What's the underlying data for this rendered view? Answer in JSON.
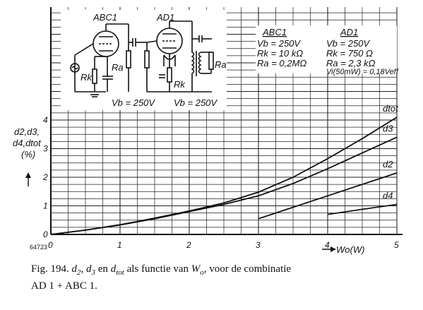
{
  "caption": {
    "prefix": "Fig. 194.",
    "t_d": "d",
    "t_2": "2",
    "t_comma": ",",
    "t_d3": "d",
    "t_3": "3",
    "t_en": "en",
    "t_dtot": "d",
    "t_tot": "tot",
    "t_als": "als functie van",
    "t_W": "W",
    "t_o": "o",
    "t_rest": ", voor de combinatie",
    "line2": "AD 1 + ABC 1."
  },
  "figure_number": "64723",
  "schematic": {
    "tube1": "ABC1",
    "tube2": "AD1",
    "rk1": "Rk",
    "ra1": "Ra",
    "rk2": "Rk",
    "ra2": "Ra",
    "vb1": "Vb = 250V",
    "vb2": "Vb = 250V"
  },
  "specs": {
    "abc1": {
      "title": "ABC1",
      "lines": [
        "Vb = 250V",
        "Rk = 10 kΩ",
        "Ra = 0,2MΩ"
      ]
    },
    "ad1": {
      "title": "AD1",
      "lines": [
        "Vb = 250V",
        "Rk = 750 Ω",
        "Ra = 2,3 kΩ",
        "Vi(50mW) = 0,18Veff"
      ]
    }
  },
  "chart_data": {
    "type": "line",
    "title": "",
    "xlabel": "Wo(W)",
    "ylabel": "d2,d3, d4,dtot (%)",
    "xlim": [
      0,
      5
    ],
    "ylim": [
      0,
      5
    ],
    "xticks": [
      0,
      1,
      2,
      3,
      4,
      5
    ],
    "yticks": [
      0,
      1,
      2,
      3,
      4
    ],
    "grid": true,
    "series": [
      {
        "name": "dtot",
        "x": [
          0,
          0.5,
          1,
          1.5,
          2,
          2.5,
          3,
          3.5,
          4,
          4.5,
          5
        ],
        "y": [
          0,
          0.15,
          0.34,
          0.57,
          0.82,
          1.1,
          1.48,
          2.0,
          2.65,
          3.35,
          4.1
        ]
      },
      {
        "name": "d3",
        "x": [
          0,
          0.5,
          1,
          1.5,
          2,
          2.5,
          3,
          3.5,
          4,
          4.5,
          5
        ],
        "y": [
          0,
          0.15,
          0.33,
          0.55,
          0.8,
          1.05,
          1.35,
          1.78,
          2.3,
          2.85,
          3.4
        ]
      },
      {
        "name": "d2",
        "x": [
          3,
          3.5,
          4,
          4.5,
          5
        ],
        "y": [
          0.55,
          0.95,
          1.35,
          1.75,
          2.15
        ]
      },
      {
        "name": "d4",
        "x": [
          4,
          4.5,
          5
        ],
        "y": [
          0.7,
          0.88,
          1.05
        ]
      }
    ]
  }
}
